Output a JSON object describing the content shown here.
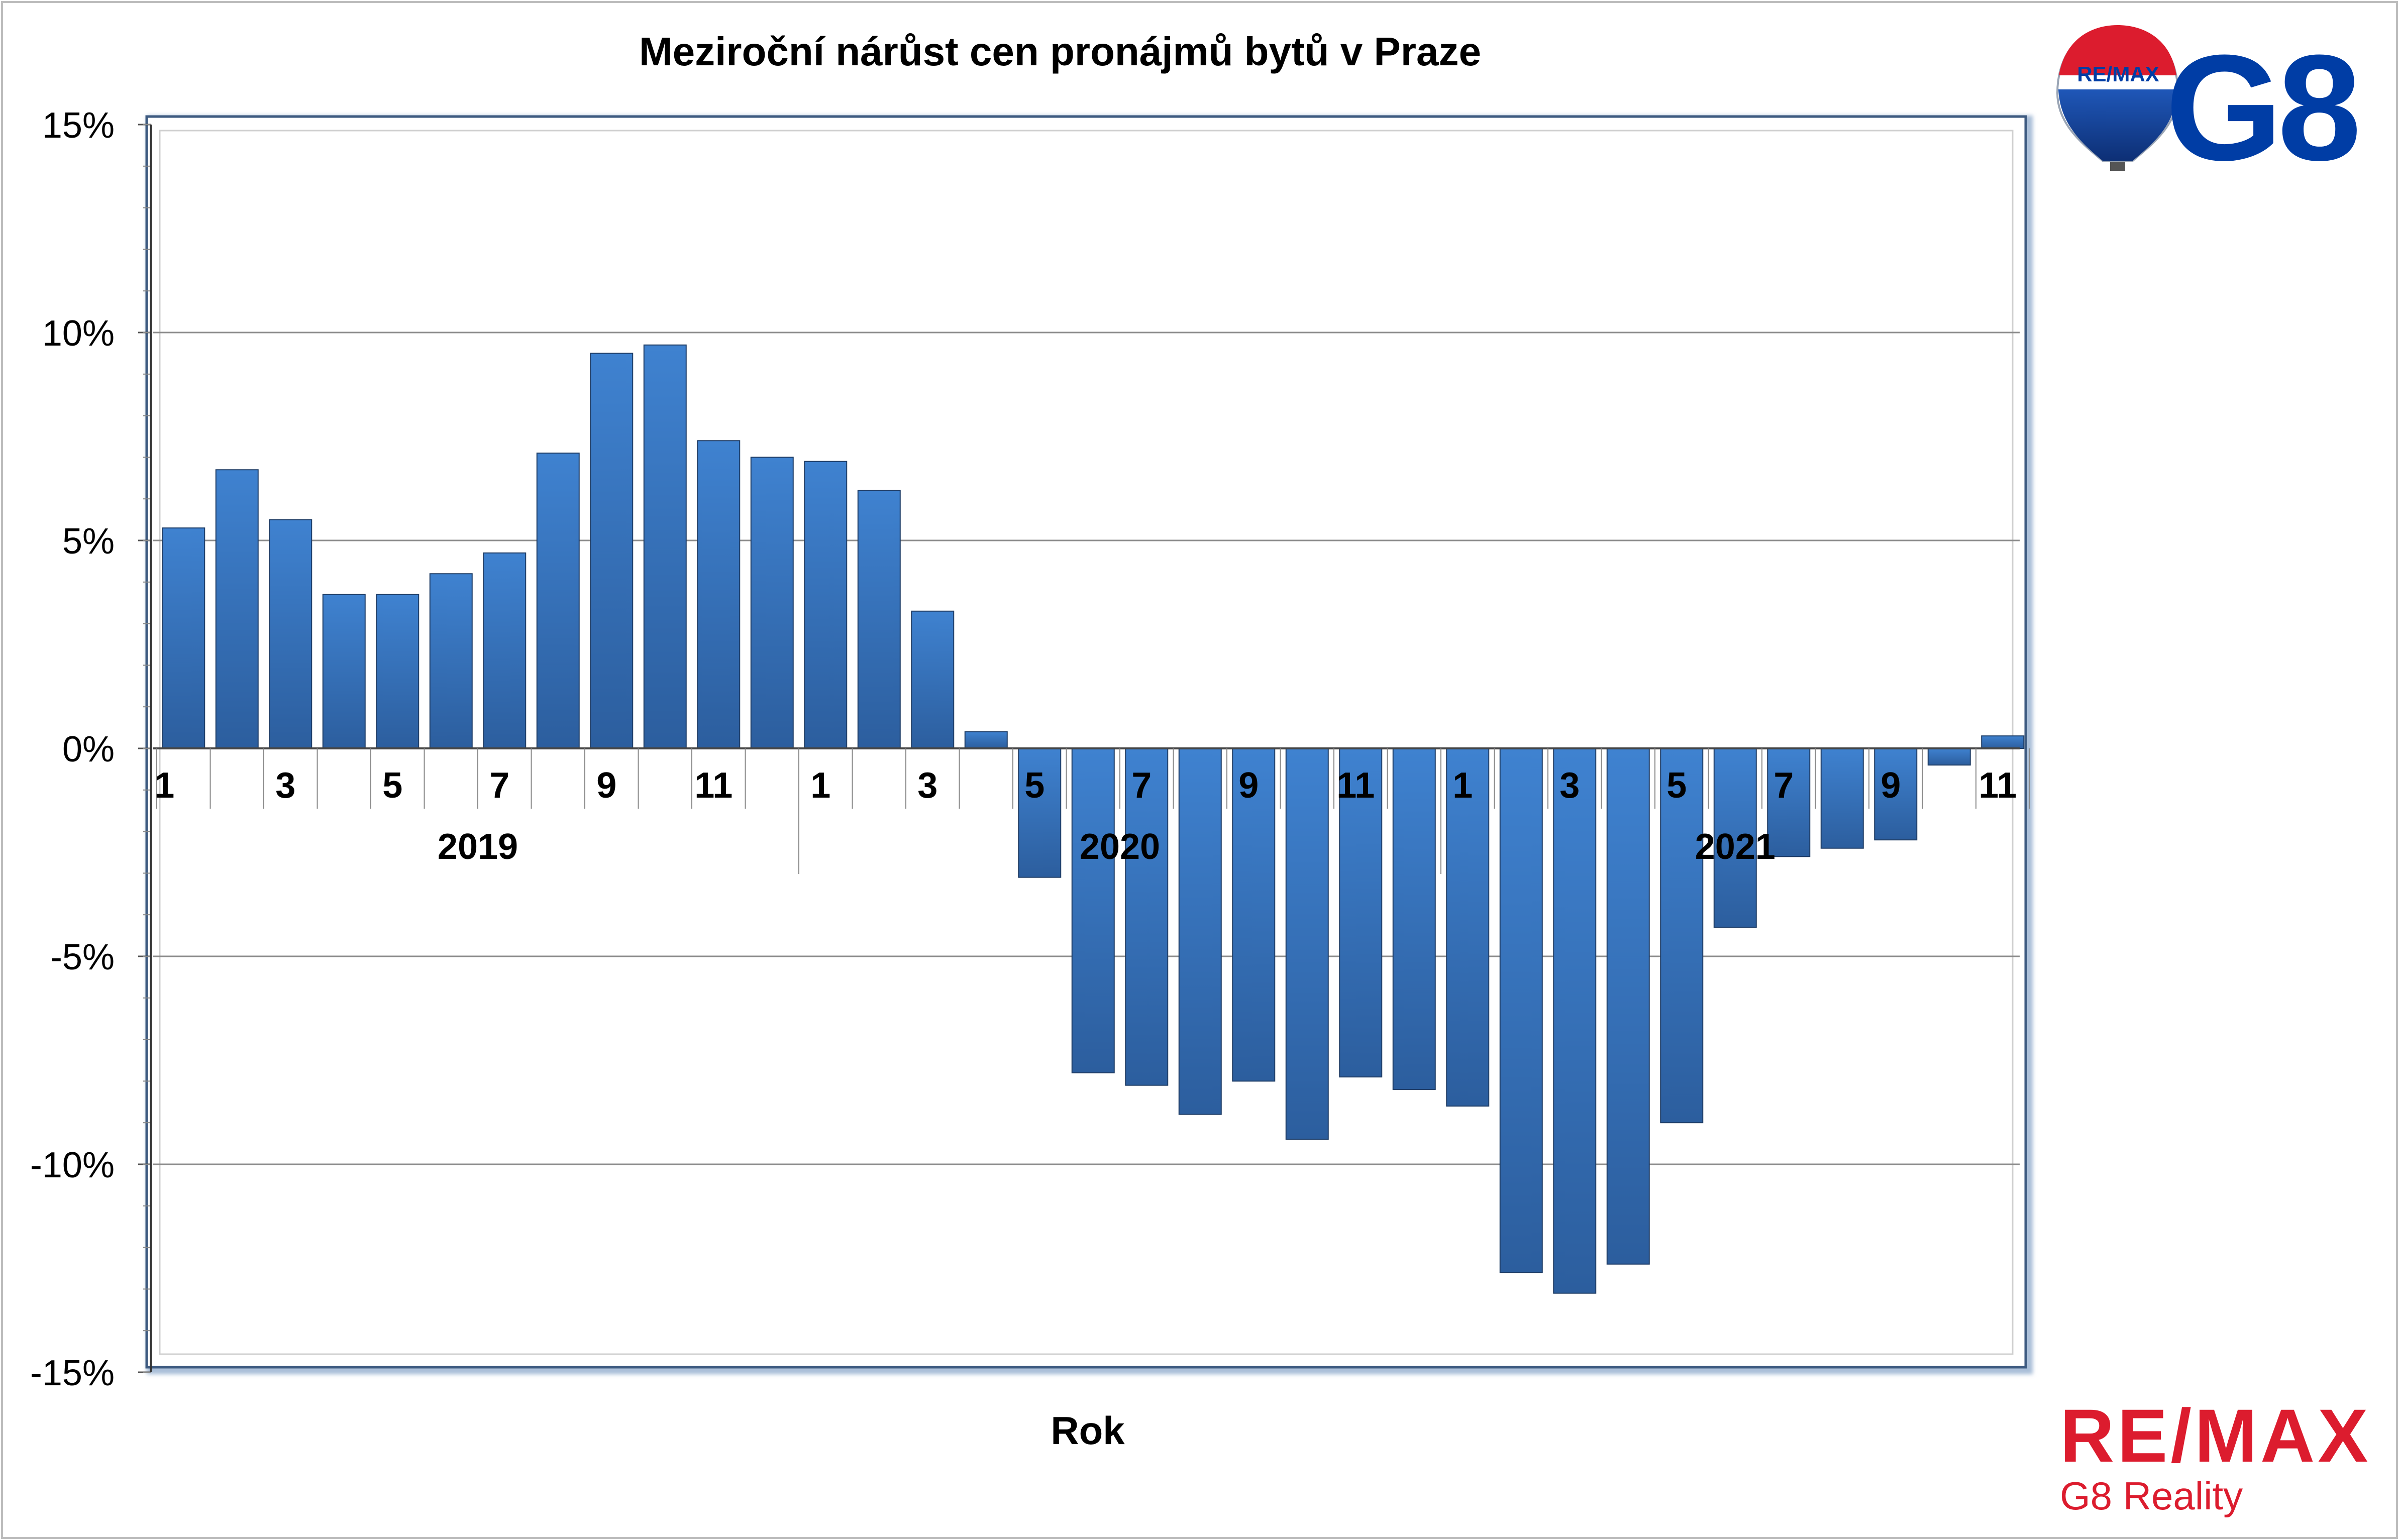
{
  "chart_data": {
    "type": "bar",
    "title": "Meziroční nárůst cen pronájmů bytů v Praze",
    "xlabel": "Rok",
    "ylabel": "",
    "ylim": [
      -0.15,
      0.15
    ],
    "yticks": [
      {
        "value": 0.15,
        "label": "15%"
      },
      {
        "value": 0.1,
        "label": "10%"
      },
      {
        "value": 0.05,
        "label": "5%"
      },
      {
        "value": 0.0,
        "label": "0%"
      },
      {
        "value": -0.05,
        "label": "-5%"
      },
      {
        "value": -0.1,
        "label": "-10%"
      },
      {
        "value": -0.15,
        "label": "-15%"
      }
    ],
    "grid": true,
    "legend": "none",
    "bar_color": "#3a78c4",
    "years": [
      {
        "label": "2019",
        "start": 0,
        "count": 12
      },
      {
        "label": "2020",
        "start": 12,
        "count": 12
      },
      {
        "label": "2021",
        "start": 24,
        "count": 11
      }
    ],
    "categories": [
      "1",
      "2",
      "3",
      "4",
      "5",
      "6",
      "7",
      "8",
      "9",
      "10",
      "11",
      "12",
      "1",
      "2",
      "3",
      "4",
      "5",
      "6",
      "7",
      "8",
      "9",
      "10",
      "11",
      "12",
      "1",
      "2",
      "3",
      "4",
      "5",
      "6",
      "7",
      "8",
      "9",
      "10",
      "11"
    ],
    "tick_labels": [
      "1",
      "",
      "3",
      "",
      "5",
      "",
      "7",
      "",
      "9",
      "",
      "11",
      "",
      "1",
      "",
      "3",
      "",
      "5",
      "",
      "7",
      "",
      "9",
      "",
      "11",
      "",
      "1",
      "",
      "3",
      "",
      "5",
      "",
      "7",
      "",
      "9",
      "",
      "11"
    ],
    "values": [
      0.053,
      0.067,
      0.055,
      0.037,
      0.037,
      0.042,
      0.047,
      0.071,
      0.095,
      0.097,
      0.074,
      0.07,
      0.069,
      0.062,
      0.033,
      0.004,
      -0.031,
      -0.078,
      -0.081,
      -0.088,
      -0.08,
      -0.094,
      -0.079,
      -0.082,
      -0.086,
      -0.126,
      -0.131,
      -0.124,
      -0.09,
      -0.043,
      -0.026,
      -0.024,
      -0.022,
      -0.004,
      0.003
    ]
  },
  "branding": {
    "balloon_logo_text": "RE/MAX",
    "g8_logo_text": "G8",
    "remax_text": "RE/MAX",
    "reality_text": "G8 Reality",
    "remax_red": "#dc1c2e",
    "remax_blue": "#003da5"
  }
}
